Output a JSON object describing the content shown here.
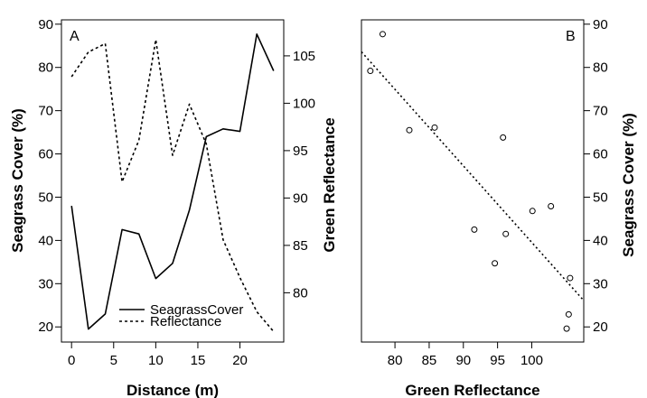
{
  "chart_data": [
    {
      "type": "line",
      "panel_label": "A",
      "xlabel": "Distance (m)",
      "ylabel": "Seagrass Cover (%)",
      "y2label": "Green Reflectance",
      "xlim": [
        -1.2,
        25.2
      ],
      "ylim": [
        16.5,
        91
      ],
      "y2lim": [
        74.8,
        108.8
      ],
      "x_ticks": [
        0,
        5,
        10,
        15,
        20
      ],
      "y_ticks": [
        20,
        30,
        40,
        50,
        60,
        70,
        80,
        90
      ],
      "y2_ticks": [
        80,
        85,
        90,
        95,
        100,
        105
      ],
      "grid": false,
      "legend_position": "bottom-center",
      "series": [
        {
          "name": "SeagrassCover",
          "axis": "left",
          "style": "solid",
          "x": [
            0,
            2,
            4,
            6,
            8,
            10,
            12,
            14,
            16,
            18,
            20,
            22,
            24
          ],
          "values": [
            48,
            19.5,
            23,
            42.5,
            41.5,
            31.2,
            34.7,
            47,
            64,
            65.8,
            65.2,
            87.7,
            79.2
          ]
        },
        {
          "name": "Reflectance",
          "axis": "right",
          "style": "dashed",
          "x": [
            0,
            2,
            4,
            6,
            8,
            10,
            12,
            14,
            16,
            18,
            20,
            22,
            24
          ],
          "values": [
            102.8,
            105.4,
            106.3,
            91.7,
            96.1,
            106.7,
            94.5,
            99.9,
            95.7,
            85.6,
            81.6,
            78,
            75.9
          ]
        }
      ]
    },
    {
      "type": "scatter",
      "panel_label": "B",
      "xlabel": "Green Reflectance",
      "ylabel": "Seagrass Cover (%)",
      "xlim": [
        75.1,
        107.6
      ],
      "ylim": [
        16.5,
        91
      ],
      "x_ticks": [
        80,
        85,
        90,
        95,
        100
      ],
      "y_ticks": [
        20,
        30,
        40,
        50,
        60,
        70,
        80,
        90
      ],
      "grid": false,
      "points": {
        "x": [
          76.4,
          78.2,
          82.1,
          85.8,
          91.6,
          94.6,
          95.8,
          96.2,
          100.1,
          102.8,
          105.1,
          105.4,
          105.6
        ],
        "y": [
          79.2,
          87.7,
          65.5,
          66.1,
          42.5,
          34.7,
          63.8,
          41.5,
          46.8,
          47.9,
          19.6,
          22.9,
          31.3
        ]
      },
      "fit_line": {
        "style": "dotted",
        "x": [
          75.1,
          107.6
        ],
        "y": [
          83.6,
          26.1
        ]
      }
    }
  ]
}
